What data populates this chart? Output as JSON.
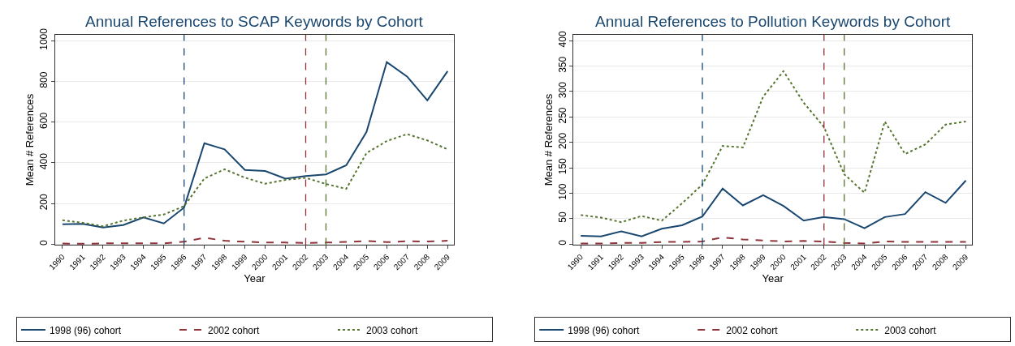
{
  "chart_data": [
    {
      "type": "line",
      "title": "Annual References to SCAP Keywords by Cohort",
      "xlabel": "Year",
      "ylabel": "Mean # References",
      "x": [
        1990,
        1991,
        1992,
        1993,
        1994,
        1995,
        1996,
        1997,
        1998,
        1999,
        2000,
        2001,
        2002,
        2003,
        2004,
        2005,
        2006,
        2007,
        2008,
        2009
      ],
      "xlim": [
        1989.65,
        2009.3
      ],
      "xticks": [
        1990,
        1991,
        1992,
        1993,
        1994,
        1995,
        1996,
        1997,
        1998,
        1999,
        2000,
        2001,
        2002,
        2003,
        2004,
        2005,
        2006,
        2007,
        2008,
        2009
      ],
      "ylim": [
        -4,
        1030
      ],
      "yticks": [
        0,
        200,
        400,
        600,
        800,
        1000
      ],
      "grid": "y",
      "legend": "bottom",
      "marker": "none",
      "series": [
        {
          "name": "1998 (96) cohort",
          "color": "#1a476f",
          "line_style": "solid",
          "values": [
            98,
            100,
            82,
            94,
            132,
            102,
            180,
            496,
            466,
            365,
            360,
            322,
            335,
            343,
            388,
            552,
            895,
            824,
            707,
            850
          ]
        },
        {
          "name": "2002 cohort",
          "color": "#90353b",
          "line_style": "dashed",
          "values": [
            3,
            2,
            4,
            4,
            5,
            4,
            12,
            32,
            17,
            12,
            9,
            8,
            6,
            8,
            11,
            16,
            10,
            15,
            13,
            17
          ]
        },
        {
          "name": "2003 cohort",
          "color": "#55752f",
          "line_style": "dotted",
          "values": [
            118,
            105,
            88,
            116,
            132,
            146,
            187,
            323,
            368,
            327,
            297,
            316,
            326,
            296,
            272,
            448,
            507,
            541,
            510,
            466
          ]
        }
      ],
      "ref_lines": [
        {
          "axis": "x",
          "value": 1996,
          "color": "#1a476f",
          "line_style": "dashed"
        },
        {
          "axis": "x",
          "value": 2002,
          "color": "#90353b",
          "line_style": "dashed"
        },
        {
          "axis": "x",
          "value": 2003,
          "color": "#55752f",
          "line_style": "dashed"
        }
      ]
    },
    {
      "type": "line",
      "title": "Annual References to Pollution Keywords by Cohort",
      "xlabel": "Year",
      "ylabel": "Mean # References",
      "x": [
        1990,
        1991,
        1992,
        1993,
        1994,
        1995,
        1996,
        1997,
        1998,
        1999,
        2000,
        2001,
        2002,
        2003,
        2004,
        2005,
        2006,
        2007,
        2008,
        2009
      ],
      "xlim": [
        1989.65,
        2009.3
      ],
      "xticks": [
        1990,
        1991,
        1992,
        1993,
        1994,
        1995,
        1996,
        1997,
        1998,
        1999,
        2000,
        2001,
        2002,
        2003,
        2004,
        2005,
        2006,
        2007,
        2008,
        2009
      ],
      "ylim": [
        -2,
        412
      ],
      "yticks": [
        0,
        50,
        100,
        150,
        200,
        250,
        300,
        350,
        400
      ],
      "grid": "y",
      "legend": "bottom",
      "marker": "none",
      "series": [
        {
          "name": "1998 (96) cohort",
          "color": "#1a476f",
          "line_style": "solid",
          "values": [
            16,
            15,
            25,
            15,
            30,
            37,
            54,
            109,
            76,
            96,
            75,
            46,
            53,
            49,
            31,
            53,
            59,
            102,
            81,
            125
          ]
        },
        {
          "name": "2002 cohort",
          "color": "#90353b",
          "line_style": "dashed",
          "values": [
            1,
            1,
            2,
            2,
            4,
            4,
            5,
            13,
            9,
            7,
            5,
            6,
            5,
            2,
            1,
            5,
            4,
            4,
            4,
            4
          ]
        },
        {
          "name": "2003 cohort",
          "color": "#55752f",
          "line_style": "dotted",
          "values": [
            57,
            52,
            43,
            55,
            46,
            80,
            117,
            193,
            190,
            290,
            340,
            278,
            230,
            137,
            101,
            241,
            177,
            196,
            235,
            241
          ]
        }
      ],
      "ref_lines": [
        {
          "axis": "x",
          "value": 1996,
          "color": "#1a476f",
          "line_style": "dashed"
        },
        {
          "axis": "x",
          "value": 2002,
          "color": "#90353b",
          "line_style": "dashed"
        },
        {
          "axis": "x",
          "value": 2003,
          "color": "#55752f",
          "line_style": "dashed"
        }
      ]
    }
  ]
}
